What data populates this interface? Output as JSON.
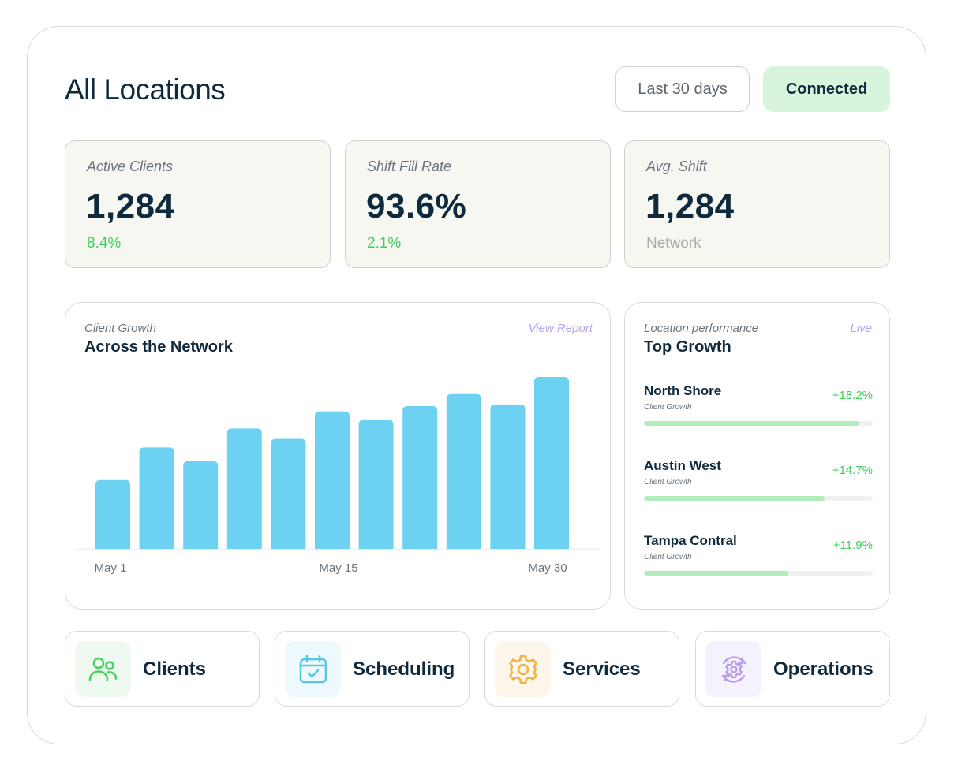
{
  "header": {
    "title": "All Locations",
    "range_label": "Last 30 days",
    "status_label": "Connected"
  },
  "stats": [
    {
      "label": "Active Clients",
      "value": "1,284",
      "sub": "8.4%"
    },
    {
      "label": "Shift Fill Rate",
      "value": "93.6%",
      "sub": "2.1%"
    },
    {
      "label": "Avg. Shift",
      "value": "1,284",
      "sub": "Network"
    }
  ],
  "growth_card": {
    "kicker": "Client Growth",
    "title": "Across the Network",
    "link": "View Report"
  },
  "chart_data": {
    "type": "bar",
    "categories": [
      "1",
      "2",
      "3",
      "4",
      "5",
      "6",
      "7",
      "8",
      "9",
      "10",
      "11"
    ],
    "values": [
      40,
      59,
      51,
      70,
      64,
      80,
      75,
      83,
      90,
      84,
      100
    ],
    "xticks": [
      "May 1",
      "May 15",
      "May 30"
    ],
    "ylim": [
      0,
      100
    ],
    "color": "#6dd2f1",
    "grid": false
  },
  "performance": {
    "kicker": "Location performance",
    "badge": "Live",
    "title": "Top Growth",
    "locations": [
      {
        "name": "North Shore",
        "metric": "Client Growth",
        "change": "+18.2%",
        "progress": 0.94
      },
      {
        "name": "Austin West",
        "metric": "Client Growth",
        "change": "+14.7%",
        "progress": 0.79
      },
      {
        "name": "Tampa Contral",
        "metric": "Client Growth",
        "change": "+11.9%",
        "progress": 0.63
      }
    ]
  },
  "nav": [
    {
      "label": "Clients",
      "icon": "users-icon",
      "tint": "#eefaf0",
      "color": "#4ccf65"
    },
    {
      "label": "Scheduling",
      "icon": "calendar-check-icon",
      "tint": "#edf9fc",
      "color": "#5ac6e6"
    },
    {
      "label": "Services",
      "icon": "gear-icon",
      "tint": "#fdf6ea",
      "color": "#f2b248"
    },
    {
      "label": "Operations",
      "icon": "gear-cycle-icon",
      "tint": "#f5f2fd",
      "color": "#b79cef"
    }
  ]
}
